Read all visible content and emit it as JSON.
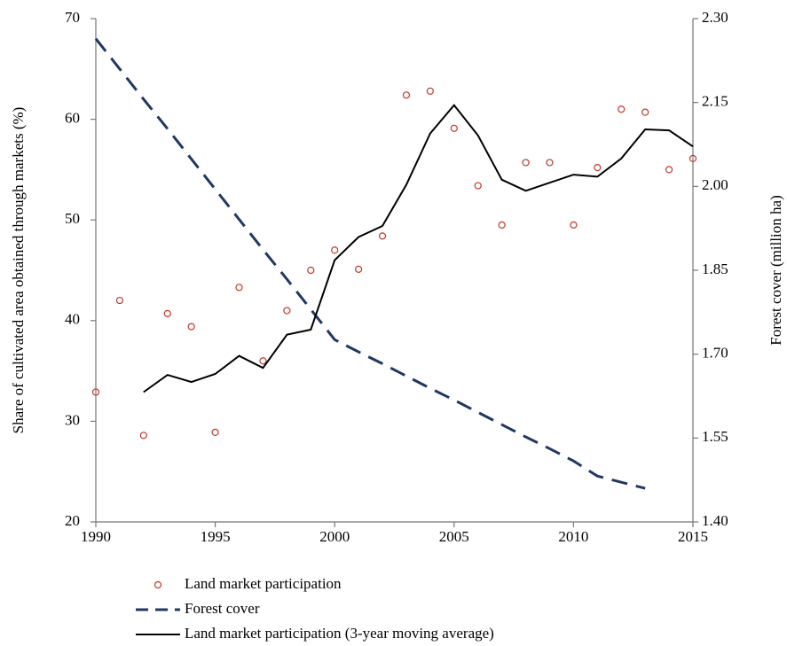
{
  "chart_data": {
    "type": "line",
    "x": [
      1990,
      1991,
      1992,
      1993,
      1994,
      1995,
      1996,
      1997,
      1998,
      1999,
      2000,
      2001,
      2002,
      2003,
      2004,
      2005,
      2006,
      2007,
      2008,
      2009,
      2010,
      2011,
      2012,
      2013,
      2014,
      2015
    ],
    "series": [
      {
        "name": "Land market participation",
        "type": "scatter",
        "color": "#c0392b",
        "values": [
          32.9,
          42.0,
          28.6,
          40.7,
          39.4,
          28.9,
          43.3,
          36.0,
          41.0,
          45.0,
          47.0,
          45.1,
          48.4,
          62.4,
          62.8,
          59.1,
          53.4,
          49.5,
          55.7,
          55.7,
          49.5,
          55.2,
          61.0,
          60.7,
          55.0,
          56.1
        ]
      },
      {
        "name": "Forest cover",
        "type": "line",
        "dashed": true,
        "axis": "y2",
        "color": "#1f3864",
        "values": [
          2.264,
          2.21,
          2.156,
          2.103,
          2.049,
          1.995,
          1.941,
          1.887,
          1.834,
          1.78,
          1.726,
          1.704,
          1.683,
          1.661,
          1.639,
          1.618,
          1.596,
          1.574,
          1.552,
          1.531,
          1.509,
          1.482,
          1.471,
          1.46,
          null,
          null
        ]
      },
      {
        "name": "Land market participation (3-year moving average)",
        "type": "line",
        "color": "#000000",
        "values": [
          null,
          null,
          32.9,
          34.6,
          33.9,
          34.7,
          36.5,
          35.3,
          38.6,
          39.1,
          46.0,
          48.3,
          49.4,
          53.5,
          58.6,
          61.4,
          58.4,
          54.0,
          52.9,
          53.7,
          54.5,
          54.3,
          56.1,
          59.0,
          58.9,
          57.3
        ]
      }
    ],
    "y_label": "Share of cultivated area obtained through markets (%)",
    "y2_label": "Forest cover (million ha)",
    "xlim": [
      1990,
      2015
    ],
    "xticks": [
      1990,
      1995,
      2000,
      2005,
      2010,
      2015
    ],
    "ylim": [
      20,
      70
    ],
    "yticks": [
      20,
      30,
      40,
      50,
      60,
      70
    ],
    "y2lim": [
      1.4,
      2.3
    ],
    "y2ticks": [
      {
        "value": 1.4,
        "label": "1.40"
      },
      {
        "value": 1.55,
        "label": "1.55"
      },
      {
        "value": 1.7,
        "label": "1.70"
      },
      {
        "value": 1.85,
        "label": "1.85"
      },
      {
        "value": 2.0,
        "label": "2.00"
      },
      {
        "value": 2.15,
        "label": "2.15"
      },
      {
        "value": 2.3,
        "label": "2.30"
      }
    ],
    "legend": "bottom"
  }
}
